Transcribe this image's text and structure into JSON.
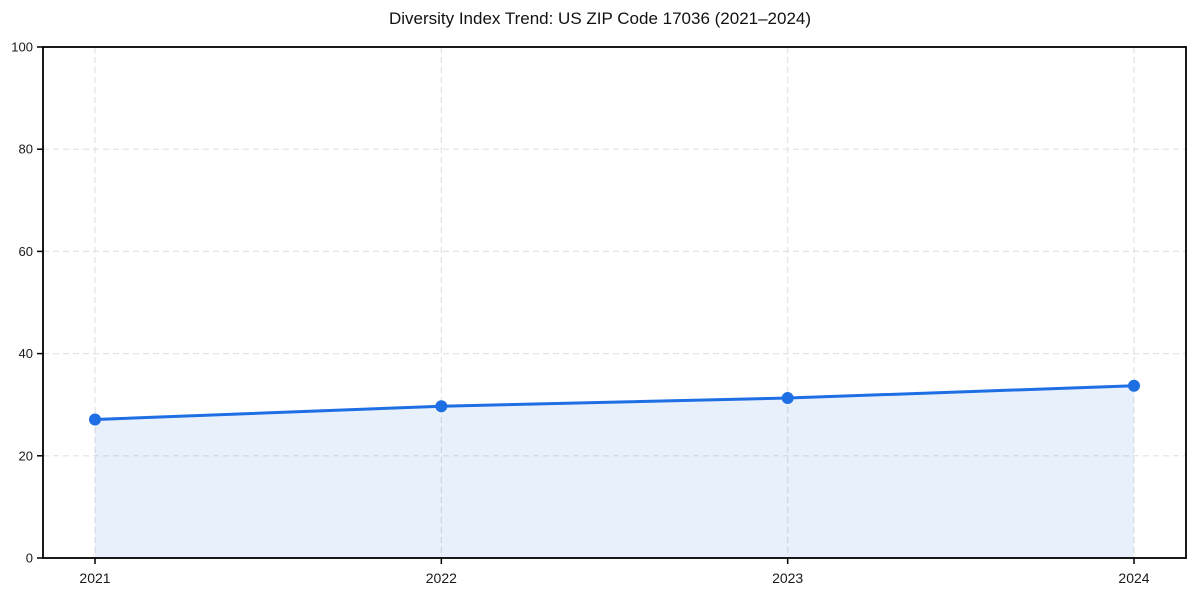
{
  "chart_data": {
    "type": "line",
    "title": "Diversity Index Trend: US ZIP Code 17036 (2021–2024)",
    "categories": [
      "2021",
      "2022",
      "2023",
      "2024"
    ],
    "series": [
      {
        "name": "Diversity Index",
        "values": [
          27.1,
          29.7,
          31.3,
          33.7
        ]
      }
    ],
    "xlabel": "",
    "ylabel": "",
    "ylim": [
      0,
      100
    ],
    "yticks": [
      0,
      20,
      40,
      60,
      80,
      100
    ],
    "grid": "dashed",
    "legend": "none",
    "style": {
      "line_color": "#1e6ee4",
      "marker_color": "#1e6ee4",
      "area_fill_color": "rgba(31, 110, 228, 0.10)",
      "grid_color": "#e2e2e2",
      "spine_color": "#000000",
      "background_color": "#ffffff",
      "title_color": "#111111",
      "tick_label_color": "#1a1a1a"
    }
  }
}
